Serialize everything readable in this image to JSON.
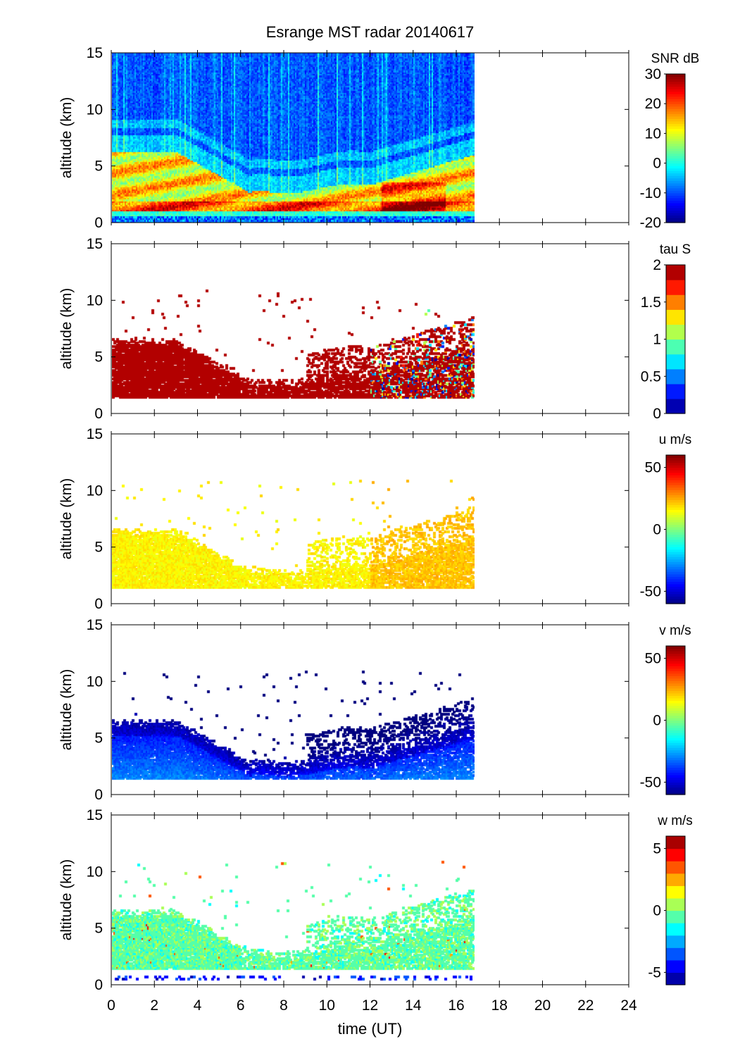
{
  "chart_data": {
    "type": "heatmap",
    "title": "Esrange MST radar 20140617",
    "xlabel": "time (UT)",
    "xlim": [
      0,
      24
    ],
    "xticks": [
      "0",
      "2",
      "4",
      "6",
      "8",
      "10",
      "12",
      "14",
      "16",
      "18",
      "20",
      "22",
      "24"
    ],
    "data_time_extent": [
      0,
      16.8
    ],
    "panels": [
      {
        "name": "snr",
        "ylabel": "altitude (km)",
        "ylim": [
          0,
          15
        ],
        "yticks": [
          "0",
          "5",
          "10",
          "15"
        ],
        "colorbar": {
          "label": "SNR dB",
          "range": [
            -20,
            30
          ],
          "ticks": [
            "-20",
            "-10",
            "0",
            "10",
            "20",
            "30"
          ],
          "tick_values": [
            -20,
            -10,
            0,
            10,
            20,
            30
          ],
          "levels": 0
        }
      },
      {
        "name": "tau",
        "ylabel": "altitude (km)",
        "ylim": [
          0,
          15
        ],
        "yticks": [
          "0",
          "5",
          "10",
          "15"
        ],
        "colorbar": {
          "label": "tau S",
          "range": [
            0,
            2
          ],
          "ticks": [
            "0",
            "0.5",
            "1",
            "1.5",
            "2"
          ],
          "tick_values": [
            0,
            0.5,
            1,
            1.5,
            2
          ],
          "levels": 10
        }
      },
      {
        "name": "u",
        "ylabel": "altitude (km)",
        "ylim": [
          0,
          15
        ],
        "yticks": [
          "0",
          "5",
          "10",
          "15"
        ],
        "colorbar": {
          "label": "u m/s",
          "range": [
            -60,
            60
          ],
          "ticks": [
            "-50",
            "0",
            "50"
          ],
          "tick_values": [
            -50,
            0,
            50
          ],
          "levels": 0
        }
      },
      {
        "name": "v",
        "ylabel": "altitude (km)",
        "ylim": [
          0,
          15
        ],
        "yticks": [
          "0",
          "5",
          "10",
          "15"
        ],
        "colorbar": {
          "label": "v m/s",
          "range": [
            -60,
            60
          ],
          "ticks": [
            "-50",
            "0",
            "50"
          ],
          "tick_values": [
            -50,
            0,
            50
          ],
          "levels": 0
        }
      },
      {
        "name": "w",
        "ylabel": "altitude (km)",
        "ylim": [
          0,
          15
        ],
        "yticks": [
          "0",
          "5",
          "10",
          "15"
        ],
        "colorbar": {
          "label": "w m/s",
          "range": [
            -6,
            6
          ],
          "ticks": [
            "-5",
            "0",
            "5"
          ],
          "tick_values": [
            -5,
            0,
            5
          ],
          "levels": 12
        }
      }
    ]
  }
}
